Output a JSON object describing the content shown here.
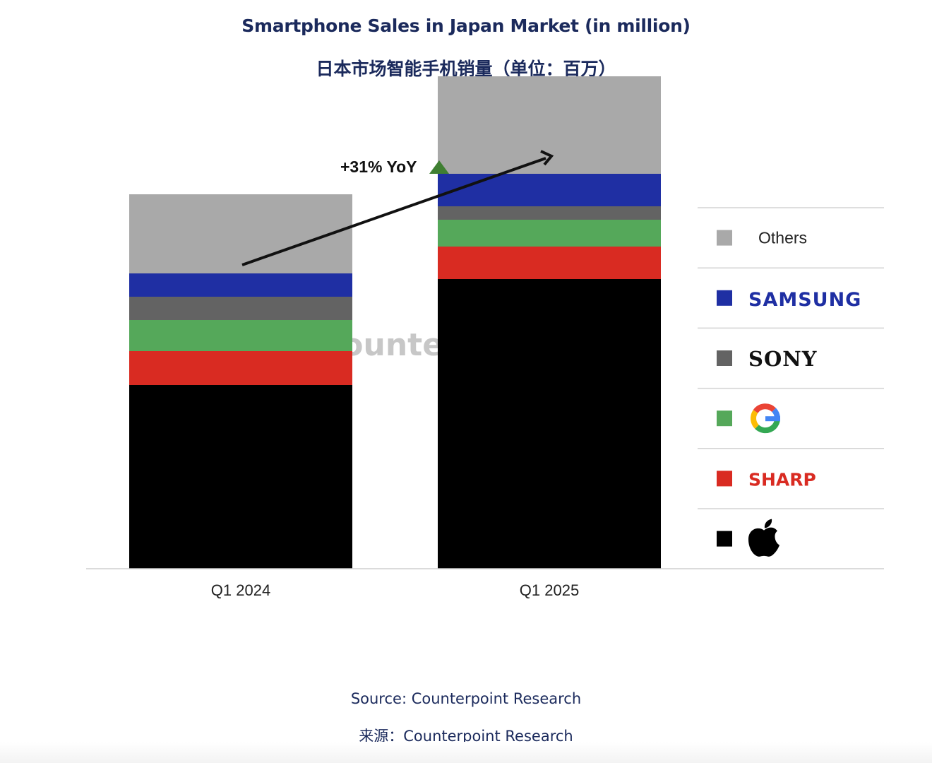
{
  "titles": {
    "title_en": "Smartphone Sales in Japan Market (in million)",
    "title_zh": "日本市场智能手机销量（单位：百万）"
  },
  "annotation": {
    "text": "+31% YoY",
    "triangle_color": "#3f7f32"
  },
  "watermark": "Counterpoint",
  "source": {
    "en": "Source: Counterpoint Research",
    "zh": "来源：Counterpoint Research"
  },
  "chart_data": {
    "type": "bar",
    "stacked": true,
    "categories": [
      "Q1 2024",
      "Q1 2025"
    ],
    "ylim": [
      0,
      7
    ],
    "y_axis_shown": false,
    "grid": false,
    "legend_position": "right",
    "series": [
      {
        "name": "Apple",
        "logo": "apple-logo",
        "color": "#000000",
        "values": [
          2.6,
          4.1
        ]
      },
      {
        "name": "SHARP",
        "color": "#d92b22",
        "values": [
          0.48,
          0.46
        ]
      },
      {
        "name": "Google",
        "logo": "google-g-logo",
        "color": "#55a85a",
        "values": [
          0.44,
          0.38
        ]
      },
      {
        "name": "SONY",
        "color": "#636363",
        "values": [
          0.33,
          0.19
        ]
      },
      {
        "name": "SAMSUNG",
        "color": "#1f2fa3",
        "values": [
          0.33,
          0.46
        ]
      },
      {
        "name": "Others",
        "color": "#a9a9a9",
        "values": [
          1.12,
          1.38
        ]
      }
    ]
  }
}
